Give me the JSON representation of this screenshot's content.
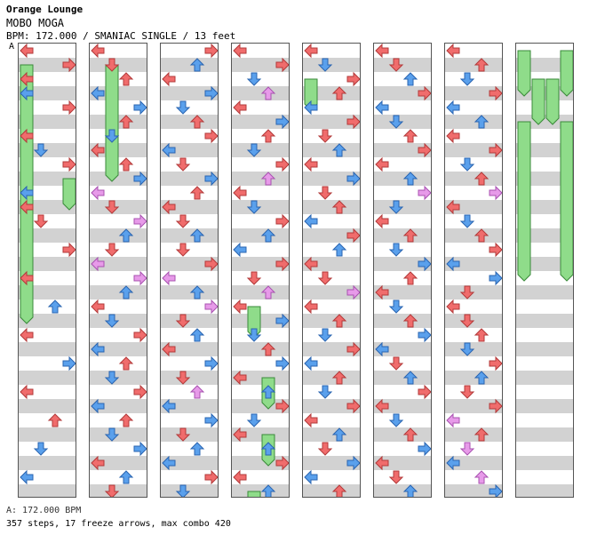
{
  "header": {
    "group": "Orange Lounge",
    "song": "MOBO MOGA",
    "meta": "BPM: 172.000 / SMANIAC SINGLE / 13 feet",
    "bpm_marker": "A"
  },
  "footer": {
    "bpm_line": "A: 172.000 BPM",
    "stats": "357 steps, 17 freeze arrows, max combo 420"
  },
  "colors": {
    "quarter": "#f06c6c",
    "eighth": "#5aa0ec",
    "sixteenth": "#e79ae9",
    "freeze": "#8fdc8a"
  },
  "columns": [
    {
      "id": 1,
      "arrows": [
        [
          0,
          0,
          "r"
        ],
        [
          1,
          3,
          "r"
        ],
        [
          2,
          0,
          "r"
        ],
        [
          3,
          0,
          "b"
        ],
        [
          4,
          3,
          "r"
        ],
        [
          6,
          0,
          "r"
        ],
        [
          7,
          1,
          "b"
        ],
        [
          8,
          3,
          "r"
        ],
        [
          10,
          0,
          "b"
        ],
        [
          11,
          0,
          "r"
        ],
        [
          12,
          1,
          "r"
        ],
        [
          14,
          3,
          "r"
        ],
        [
          16,
          0,
          "r"
        ],
        [
          18,
          2,
          "b"
        ],
        [
          20,
          0,
          "r"
        ],
        [
          22,
          3,
          "b"
        ],
        [
          24,
          0,
          "r"
        ],
        [
          26,
          2,
          "r"
        ],
        [
          28,
          1,
          "b"
        ],
        [
          30,
          0,
          "b"
        ]
      ],
      "freezes": [
        [
          1,
          0,
          1
        ],
        [
          2,
          0,
          3.5
        ],
        [
          6,
          0,
          4
        ],
        [
          9,
          3,
          1
        ],
        [
          11,
          0,
          4
        ]
      ]
    },
    {
      "id": 2,
      "arrows": [
        [
          0,
          0,
          "r"
        ],
        [
          1,
          1,
          "r"
        ],
        [
          2,
          2,
          "r"
        ],
        [
          3,
          0,
          "b"
        ],
        [
          4,
          3,
          "b"
        ],
        [
          5,
          2,
          "r"
        ],
        [
          6,
          1,
          "b"
        ],
        [
          7,
          0,
          "r"
        ],
        [
          8,
          2,
          "r"
        ],
        [
          9,
          3,
          "b"
        ],
        [
          10,
          0,
          "p"
        ],
        [
          11,
          1,
          "r"
        ],
        [
          12,
          3,
          "p"
        ],
        [
          13,
          2,
          "b"
        ],
        [
          14,
          1,
          "r"
        ],
        [
          15,
          0,
          "p"
        ],
        [
          16,
          3,
          "p"
        ],
        [
          17,
          2,
          "b"
        ],
        [
          18,
          0,
          "r"
        ],
        [
          19,
          1,
          "b"
        ],
        [
          20,
          3,
          "r"
        ],
        [
          21,
          0,
          "b"
        ],
        [
          22,
          2,
          "r"
        ],
        [
          23,
          1,
          "b"
        ],
        [
          24,
          3,
          "r"
        ],
        [
          25,
          0,
          "b"
        ],
        [
          26,
          2,
          "r"
        ],
        [
          27,
          1,
          "b"
        ],
        [
          28,
          3,
          "b"
        ],
        [
          29,
          0,
          "r"
        ],
        [
          30,
          2,
          "b"
        ],
        [
          31,
          1,
          "r"
        ]
      ],
      "freezes": [
        [
          1,
          1,
          4
        ]
      ]
    },
    {
      "id": 3,
      "arrows": [
        [
          0,
          3,
          "r"
        ],
        [
          1,
          2,
          "b"
        ],
        [
          2,
          0,
          "r"
        ],
        [
          3,
          3,
          "b"
        ],
        [
          4,
          1,
          "b"
        ],
        [
          5,
          2,
          "r"
        ],
        [
          6,
          3,
          "r"
        ],
        [
          7,
          0,
          "b"
        ],
        [
          8,
          1,
          "r"
        ],
        [
          9,
          3,
          "b"
        ],
        [
          10,
          2,
          "r"
        ],
        [
          11,
          0,
          "r"
        ],
        [
          12,
          1,
          "r"
        ],
        [
          13,
          2,
          "b"
        ],
        [
          14,
          1,
          "r"
        ],
        [
          15,
          3,
          "r"
        ],
        [
          16,
          0,
          "p"
        ],
        [
          17,
          2,
          "b"
        ],
        [
          18,
          3,
          "p"
        ],
        [
          19,
          1,
          "r"
        ],
        [
          20,
          2,
          "b"
        ],
        [
          21,
          0,
          "r"
        ],
        [
          22,
          3,
          "b"
        ],
        [
          23,
          1,
          "r"
        ],
        [
          24,
          2,
          "p"
        ],
        [
          25,
          0,
          "b"
        ],
        [
          26,
          3,
          "b"
        ],
        [
          27,
          1,
          "r"
        ],
        [
          28,
          2,
          "b"
        ],
        [
          29,
          0,
          "b"
        ],
        [
          30,
          3,
          "r"
        ],
        [
          31,
          1,
          "b"
        ]
      ],
      "freezes": []
    },
    {
      "id": 4,
      "arrows": [
        [
          0,
          0,
          "r"
        ],
        [
          1,
          3,
          "r"
        ],
        [
          2,
          1,
          "b"
        ],
        [
          3,
          2,
          "p"
        ],
        [
          4,
          0,
          "r"
        ],
        [
          5,
          3,
          "b"
        ],
        [
          6,
          2,
          "r"
        ],
        [
          7,
          1,
          "b"
        ],
        [
          8,
          3,
          "r"
        ],
        [
          9,
          2,
          "p"
        ],
        [
          10,
          0,
          "r"
        ],
        [
          11,
          1,
          "b"
        ],
        [
          12,
          3,
          "r"
        ],
        [
          13,
          2,
          "b"
        ],
        [
          14,
          0,
          "b"
        ],
        [
          15,
          3,
          "r"
        ],
        [
          16,
          1,
          "r"
        ],
        [
          17,
          2,
          "p"
        ],
        [
          18,
          0,
          "r"
        ],
        [
          19,
          3,
          "b"
        ],
        [
          20,
          1,
          "b"
        ],
        [
          21,
          2,
          "r"
        ],
        [
          22,
          3,
          "b"
        ],
        [
          23,
          0,
          "r"
        ],
        [
          24,
          2,
          "b"
        ],
        [
          25,
          3,
          "r"
        ],
        [
          26,
          1,
          "b"
        ],
        [
          27,
          0,
          "r"
        ],
        [
          28,
          2,
          "b"
        ],
        [
          29,
          3,
          "r"
        ],
        [
          30,
          0,
          "r"
        ],
        [
          31,
          2,
          "b"
        ]
      ],
      "freezes": [
        [
          18,
          1,
          1
        ],
        [
          23,
          2,
          1
        ],
        [
          27,
          2,
          1
        ],
        [
          31,
          1,
          1
        ]
      ]
    },
    {
      "id": 5,
      "arrows": [
        [
          0,
          0,
          "r"
        ],
        [
          1,
          1,
          "b"
        ],
        [
          2,
          3,
          "r"
        ],
        [
          3,
          2,
          "r"
        ],
        [
          4,
          0,
          "b"
        ],
        [
          5,
          3,
          "r"
        ],
        [
          6,
          1,
          "r"
        ],
        [
          7,
          2,
          "b"
        ],
        [
          8,
          0,
          "r"
        ],
        [
          9,
          3,
          "b"
        ],
        [
          10,
          1,
          "r"
        ],
        [
          11,
          2,
          "r"
        ],
        [
          12,
          0,
          "b"
        ],
        [
          13,
          3,
          "r"
        ],
        [
          14,
          2,
          "b"
        ],
        [
          15,
          0,
          "r"
        ],
        [
          16,
          1,
          "r"
        ],
        [
          17,
          3,
          "p"
        ],
        [
          18,
          0,
          "r"
        ],
        [
          19,
          2,
          "r"
        ],
        [
          20,
          1,
          "b"
        ],
        [
          21,
          3,
          "r"
        ],
        [
          22,
          0,
          "b"
        ],
        [
          23,
          2,
          "r"
        ],
        [
          24,
          1,
          "b"
        ],
        [
          25,
          3,
          "r"
        ],
        [
          26,
          0,
          "r"
        ],
        [
          27,
          2,
          "b"
        ],
        [
          28,
          1,
          "r"
        ],
        [
          29,
          3,
          "b"
        ],
        [
          30,
          0,
          "b"
        ],
        [
          31,
          2,
          "r"
        ]
      ],
      "freezes": [
        [
          2,
          0,
          1
        ]
      ]
    },
    {
      "id": 6,
      "arrows": [
        [
          0,
          0,
          "r"
        ],
        [
          1,
          1,
          "r"
        ],
        [
          2,
          2,
          "b"
        ],
        [
          3,
          3,
          "r"
        ],
        [
          4,
          0,
          "b"
        ],
        [
          5,
          1,
          "b"
        ],
        [
          6,
          2,
          "r"
        ],
        [
          7,
          3,
          "r"
        ],
        [
          8,
          0,
          "r"
        ],
        [
          9,
          2,
          "b"
        ],
        [
          10,
          3,
          "p"
        ],
        [
          11,
          1,
          "b"
        ],
        [
          12,
          0,
          "r"
        ],
        [
          13,
          2,
          "r"
        ],
        [
          14,
          1,
          "b"
        ],
        [
          15,
          3,
          "b"
        ],
        [
          16,
          2,
          "r"
        ],
        [
          17,
          0,
          "r"
        ],
        [
          18,
          1,
          "b"
        ],
        [
          19,
          2,
          "r"
        ],
        [
          20,
          3,
          "b"
        ],
        [
          21,
          0,
          "b"
        ],
        [
          22,
          1,
          "r"
        ],
        [
          23,
          2,
          "b"
        ],
        [
          24,
          3,
          "r"
        ],
        [
          25,
          0,
          "r"
        ],
        [
          26,
          1,
          "b"
        ],
        [
          27,
          2,
          "r"
        ],
        [
          28,
          3,
          "b"
        ],
        [
          29,
          0,
          "r"
        ],
        [
          30,
          1,
          "r"
        ],
        [
          31,
          2,
          "b"
        ]
      ],
      "freezes": []
    },
    {
      "id": 7,
      "arrows": [
        [
          0,
          0,
          "r"
        ],
        [
          1,
          2,
          "r"
        ],
        [
          2,
          1,
          "b"
        ],
        [
          3,
          3,
          "r"
        ],
        [
          4,
          0,
          "b"
        ],
        [
          5,
          2,
          "b"
        ],
        [
          6,
          0,
          "r"
        ],
        [
          7,
          3,
          "r"
        ],
        [
          8,
          1,
          "b"
        ],
        [
          9,
          2,
          "r"
        ],
        [
          10,
          3,
          "p"
        ],
        [
          11,
          0,
          "r"
        ],
        [
          12,
          1,
          "b"
        ],
        [
          13,
          2,
          "r"
        ],
        [
          14,
          3,
          "r"
        ],
        [
          15,
          0,
          "b"
        ],
        [
          16,
          3,
          "b"
        ],
        [
          17,
          1,
          "r"
        ],
        [
          18,
          0,
          "r"
        ],
        [
          19,
          1,
          "r"
        ],
        [
          20,
          2,
          "r"
        ],
        [
          21,
          1,
          "b"
        ],
        [
          22,
          3,
          "r"
        ],
        [
          23,
          2,
          "b"
        ],
        [
          24,
          1,
          "r"
        ],
        [
          25,
          3,
          "r"
        ],
        [
          26,
          0,
          "p"
        ],
        [
          27,
          2,
          "r"
        ],
        [
          28,
          1,
          "p"
        ],
        [
          29,
          0,
          "b"
        ],
        [
          30,
          2,
          "p"
        ],
        [
          31,
          3,
          "b"
        ]
      ],
      "freezes": []
    },
    {
      "id": 8,
      "arrows": [],
      "freezes": [
        [
          0,
          0,
          1.5
        ],
        [
          0,
          3,
          1.5
        ],
        [
          2,
          1,
          1.5
        ],
        [
          2,
          2,
          1.5
        ],
        [
          5,
          0,
          5.5
        ],
        [
          5,
          3,
          5.5
        ]
      ]
    }
  ]
}
